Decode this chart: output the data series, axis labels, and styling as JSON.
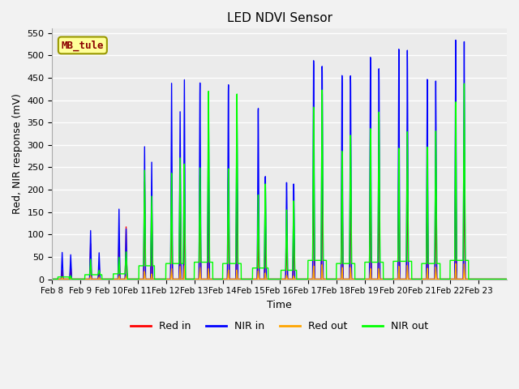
{
  "title": "LED NDVI Sensor",
  "ylabel": "Red, NIR response (mV)",
  "xlabel": "Time",
  "ylim": [
    0,
    560
  ],
  "yticks": [
    0,
    50,
    100,
    150,
    200,
    250,
    300,
    350,
    400,
    450,
    500,
    550
  ],
  "annotation_text": "MB_tule",
  "colors": {
    "red_in": "#FF0000",
    "nir_in": "#0000FF",
    "red_out": "#FFA500",
    "nir_out": "#00FF00"
  },
  "legend_labels": [
    "Red in",
    "NIR in",
    "Red out",
    "NIR out"
  ],
  "background_color": "#EBEBEB",
  "grid_color": "#FFFFFF",
  "line_width": 1.0,
  "x_tick_labels": [
    "Feb 8",
    "Feb 9",
    "Feb 10",
    "Feb 11",
    "Feb 12",
    "Feb 13",
    "Feb 14",
    "Feb 15",
    "Feb 16",
    "Feb 17",
    "Feb 18",
    "Feb 19",
    "Feb 20",
    "Feb 21",
    "Feb 22",
    "Feb 23"
  ],
  "figsize": [
    6.4,
    4.8
  ],
  "dpi": 100
}
